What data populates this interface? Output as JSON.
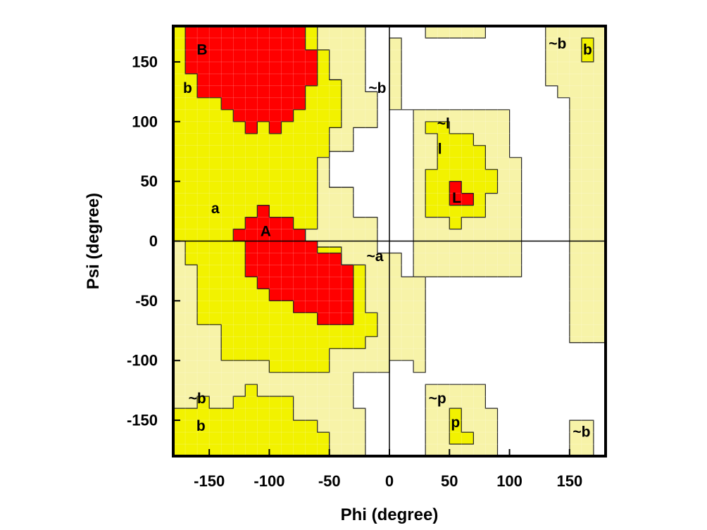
{
  "chart_data": {
    "type": "heatmap",
    "title": "",
    "xlabel": "Phi (degree)",
    "ylabel": "Psi (degree)",
    "xlim": [
      -180,
      180
    ],
    "ylim": [
      -180,
      180
    ],
    "xticks": [
      -150,
      -100,
      -50,
      0,
      50,
      100,
      150
    ],
    "yticks": [
      -150,
      -100,
      -50,
      0,
      50,
      100,
      150
    ],
    "grid": false,
    "reference_lines": [
      {
        "axis": "x",
        "value": 0
      },
      {
        "axis": "y",
        "value": 0
      }
    ],
    "region_colors": {
      "core": "#ff0000",
      "allowed": "#f2f200",
      "generous": "#f7f3a8",
      "disallowed": "#ffffff"
    },
    "regions": [
      {
        "class": "generous",
        "polygons": [
          [
            [
              -180,
              180
            ],
            [
              -20,
              180
            ],
            [
              -20,
              125
            ],
            [
              -10,
              125
            ],
            [
              -10,
              95
            ],
            [
              -30,
              95
            ],
            [
              -30,
              75
            ],
            [
              -50,
              75
            ],
            [
              -50,
              45
            ],
            [
              -30,
              45
            ],
            [
              -30,
              20
            ],
            [
              -10,
              20
            ],
            [
              -10,
              -10
            ],
            [
              10,
              -10
            ],
            [
              10,
              -30
            ],
            [
              30,
              -30
            ],
            [
              30,
              -110
            ],
            [
              20,
              -110
            ],
            [
              20,
              -100
            ],
            [
              0,
              -100
            ],
            [
              0,
              -110
            ],
            [
              -30,
              -110
            ],
            [
              -30,
              -140
            ],
            [
              -20,
              -140
            ],
            [
              -20,
              -180
            ],
            [
              -180,
              -180
            ]
          ],
          [
            [
              0,
              170
            ],
            [
              10,
              170
            ],
            [
              10,
              110
            ],
            [
              100,
              110
            ],
            [
              100,
              70
            ],
            [
              110,
              70
            ],
            [
              110,
              -30
            ],
            [
              20,
              -30
            ],
            [
              20,
              110
            ],
            [
              0,
              110
            ]
          ],
          [
            [
              30,
              180
            ],
            [
              80,
              180
            ],
            [
              80,
              170
            ],
            [
              30,
              170
            ]
          ],
          [
            [
              130,
              180
            ],
            [
              180,
              180
            ],
            [
              180,
              -85
            ],
            [
              150,
              -85
            ],
            [
              150,
              120
            ],
            [
              140,
              120
            ],
            [
              140,
              130
            ],
            [
              130,
              130
            ]
          ],
          [
            [
              30,
              -120
            ],
            [
              80,
              -120
            ],
            [
              80,
              -140
            ],
            [
              90,
              -140
            ],
            [
              90,
              -180
            ],
            [
              30,
              -180
            ]
          ],
          [
            [
              150,
              -150
            ],
            [
              170,
              -150
            ],
            [
              170,
              -180
            ],
            [
              150,
              -180
            ]
          ]
        ]
      },
      {
        "class": "allowed",
        "polygons": [
          [
            [
              -180,
              180
            ],
            [
              -60,
              180
            ],
            [
              -60,
              160
            ],
            [
              -50,
              160
            ],
            [
              -50,
              135
            ],
            [
              -40,
              135
            ],
            [
              -40,
              95
            ],
            [
              -50,
              95
            ],
            [
              -50,
              70
            ],
            [
              -60,
              70
            ],
            [
              -60,
              10
            ],
            [
              -70,
              10
            ],
            [
              -70,
              -5
            ],
            [
              -40,
              -5
            ],
            [
              -40,
              -20
            ],
            [
              -20,
              -20
            ],
            [
              -20,
              -60
            ],
            [
              -10,
              -60
            ],
            [
              -10,
              -80
            ],
            [
              -20,
              -80
            ],
            [
              -20,
              -90
            ],
            [
              -50,
              -90
            ],
            [
              -50,
              -110
            ],
            [
              -100,
              -110
            ],
            [
              -100,
              -100
            ],
            [
              -140,
              -100
            ],
            [
              -140,
              -70
            ],
            [
              -160,
              -70
            ],
            [
              -160,
              -20
            ],
            [
              -170,
              -20
            ],
            [
              -170,
              0
            ],
            [
              -180,
              0
            ]
          ],
          [
            [
              -180,
              -140
            ],
            [
              -160,
              -140
            ],
            [
              -160,
              -130
            ],
            [
              -150,
              -130
            ],
            [
              -150,
              -140
            ],
            [
              -130,
              -140
            ],
            [
              -130,
              -130
            ],
            [
              -120,
              -130
            ],
            [
              -120,
              -120
            ],
            [
              -110,
              -120
            ],
            [
              -110,
              -130
            ],
            [
              -80,
              -130
            ],
            [
              -80,
              -150
            ],
            [
              -60,
              -150
            ],
            [
              -60,
              -160
            ],
            [
              -50,
              -160
            ],
            [
              -50,
              -180
            ],
            [
              -180,
              -180
            ]
          ],
          [
            [
              30,
              100
            ],
            [
              50,
              100
            ],
            [
              50,
              90
            ],
            [
              70,
              90
            ],
            [
              70,
              80
            ],
            [
              80,
              80
            ],
            [
              80,
              60
            ],
            [
              90,
              60
            ],
            [
              90,
              40
            ],
            [
              80,
              40
            ],
            [
              80,
              20
            ],
            [
              60,
              20
            ],
            [
              60,
              10
            ],
            [
              50,
              10
            ],
            [
              50,
              20
            ],
            [
              30,
              20
            ],
            [
              30,
              60
            ],
            [
              40,
              60
            ],
            [
              40,
              90
            ],
            [
              30,
              90
            ]
          ],
          [
            [
              160,
              170
            ],
            [
              170,
              170
            ],
            [
              170,
              150
            ],
            [
              160,
              150
            ]
          ],
          [
            [
              50,
              -140
            ],
            [
              60,
              -140
            ],
            [
              60,
              -160
            ],
            [
              70,
              -160
            ],
            [
              70,
              -170
            ],
            [
              50,
              -170
            ]
          ]
        ]
      },
      {
        "class": "core",
        "polygons": [
          [
            [
              -170,
              180
            ],
            [
              -70,
              180
            ],
            [
              -70,
              160
            ],
            [
              -60,
              160
            ],
            [
              -60,
              130
            ],
            [
              -70,
              130
            ],
            [
              -70,
              110
            ],
            [
              -80,
              110
            ],
            [
              -80,
              100
            ],
            [
              -90,
              100
            ],
            [
              -90,
              90
            ],
            [
              -100,
              90
            ],
            [
              -100,
              100
            ],
            [
              -110,
              100
            ],
            [
              -110,
              90
            ],
            [
              -120,
              90
            ],
            [
              -120,
              100
            ],
            [
              -130,
              100
            ],
            [
              -130,
              110
            ],
            [
              -140,
              110
            ],
            [
              -140,
              120
            ],
            [
              -160,
              120
            ],
            [
              -160,
              140
            ],
            [
              -170,
              140
            ]
          ],
          [
            [
              -110,
              30
            ],
            [
              -100,
              30
            ],
            [
              -100,
              20
            ],
            [
              -80,
              20
            ],
            [
              -80,
              10
            ],
            [
              -70,
              10
            ],
            [
              -70,
              0
            ],
            [
              -60,
              0
            ],
            [
              -60,
              -10
            ],
            [
              -40,
              -10
            ],
            [
              -40,
              -20
            ],
            [
              -30,
              -20
            ],
            [
              -30,
              -70
            ],
            [
              -60,
              -70
            ],
            [
              -60,
              -60
            ],
            [
              -80,
              -60
            ],
            [
              -80,
              -50
            ],
            [
              -100,
              -50
            ],
            [
              -100,
              -40
            ],
            [
              -110,
              -40
            ],
            [
              -110,
              -30
            ],
            [
              -120,
              -30
            ],
            [
              -120,
              0
            ],
            [
              -130,
              0
            ],
            [
              -130,
              10
            ],
            [
              -120,
              10
            ],
            [
              -120,
              20
            ],
            [
              -110,
              20
            ]
          ],
          [
            [
              50,
              50
            ],
            [
              60,
              50
            ],
            [
              60,
              40
            ],
            [
              70,
              40
            ],
            [
              70,
              30
            ],
            [
              50,
              30
            ]
          ]
        ]
      }
    ],
    "annotations": [
      {
        "text": "B",
        "x": -156,
        "y": 160
      },
      {
        "text": "b",
        "x": -168,
        "y": 128
      },
      {
        "text": "~b",
        "x": -10,
        "y": 128
      },
      {
        "text": "~b",
        "x": 140,
        "y": 165
      },
      {
        "text": "b",
        "x": 165,
        "y": 160
      },
      {
        "text": "~l",
        "x": 45,
        "y": 98
      },
      {
        "text": "l",
        "x": 42,
        "y": 77
      },
      {
        "text": "L",
        "x": 56,
        "y": 36
      },
      {
        "text": "a",
        "x": -145,
        "y": 27
      },
      {
        "text": "A",
        "x": -103,
        "y": 8
      },
      {
        "text": "~a",
        "x": -12,
        "y": -13
      },
      {
        "text": "~b",
        "x": -160,
        "y": -132
      },
      {
        "text": "b",
        "x": -157,
        "y": -155
      },
      {
        "text": "~p",
        "x": 40,
        "y": -132
      },
      {
        "text": "p",
        "x": 55,
        "y": -152
      },
      {
        "text": "~b",
        "x": 160,
        "y": -160
      }
    ]
  }
}
